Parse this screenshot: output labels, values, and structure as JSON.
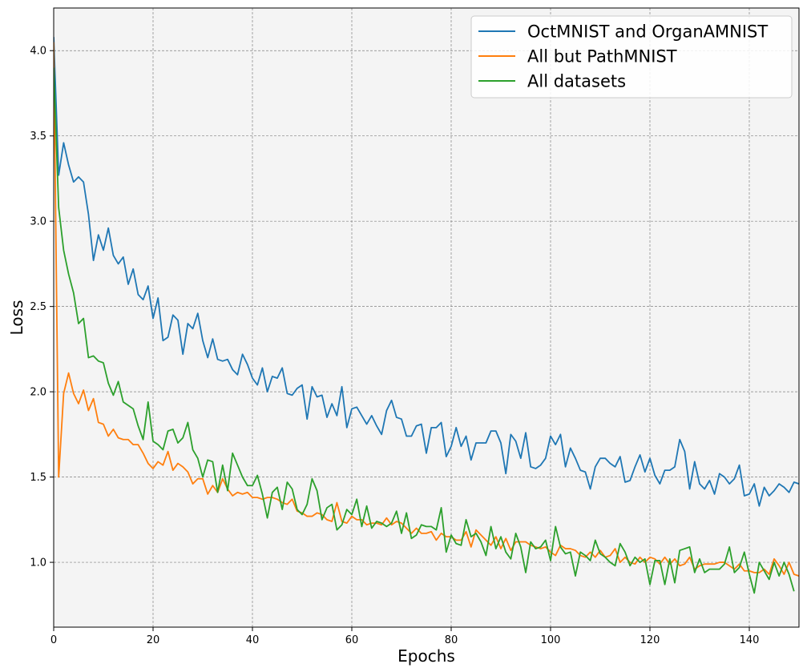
{
  "chart_data": {
    "type": "line",
    "xlabel": "Epochs",
    "ylabel": "Loss",
    "xlim": [
      0,
      150
    ],
    "ylim": [
      0.62,
      4.25
    ],
    "xticks": [
      0,
      20,
      40,
      60,
      80,
      100,
      120,
      140
    ],
    "yticks": [
      1.0,
      1.5,
      2.0,
      2.5,
      3.0,
      3.5,
      4.0
    ],
    "grid": true,
    "legend_position": "top-right",
    "background_color": "#f4f4f4",
    "series": [
      {
        "name": "OctMNIST and OrganAMNIST",
        "color": "#1f77b4",
        "values": [
          4.08,
          3.27,
          3.46,
          3.33,
          3.23,
          3.26,
          3.23,
          3.04,
          2.77,
          2.92,
          2.83,
          2.96,
          2.8,
          2.75,
          2.79,
          2.63,
          2.72,
          2.57,
          2.54,
          2.62,
          2.43,
          2.55,
          2.3,
          2.32,
          2.45,
          2.42,
          2.22,
          2.4,
          2.37,
          2.46,
          2.3,
          2.2,
          2.31,
          2.19,
          2.18,
          2.19,
          2.13,
          2.1,
          2.22,
          2.16,
          2.08,
          2.04,
          2.14,
          2.0,
          2.09,
          2.08,
          2.14,
          1.99,
          1.98,
          2.02,
          2.04,
          1.84,
          2.03,
          1.97,
          1.98,
          1.85,
          1.93,
          1.86,
          2.03,
          1.79,
          1.9,
          1.91,
          1.86,
          1.81,
          1.86,
          1.8,
          1.75,
          1.89,
          1.95,
          1.85,
          1.84,
          1.74,
          1.74,
          1.8,
          1.81,
          1.64,
          1.79,
          1.79,
          1.82,
          1.62,
          1.68,
          1.79,
          1.68,
          1.74,
          1.6,
          1.7,
          1.7,
          1.7,
          1.77,
          1.77,
          1.7,
          1.52,
          1.75,
          1.71,
          1.61,
          1.76,
          1.56,
          1.55,
          1.57,
          1.61,
          1.74,
          1.69,
          1.75,
          1.56,
          1.67,
          1.61,
          1.54,
          1.53,
          1.43,
          1.56,
          1.61,
          1.61,
          1.58,
          1.56,
          1.62,
          1.47,
          1.48,
          1.56,
          1.63,
          1.53,
          1.61,
          1.51,
          1.46,
          1.54,
          1.54,
          1.56,
          1.72,
          1.65,
          1.43,
          1.59,
          1.46,
          1.43,
          1.48,
          1.4,
          1.52,
          1.5,
          1.46,
          1.49,
          1.57,
          1.39,
          1.4,
          1.46,
          1.33,
          1.44,
          1.39,
          1.42,
          1.46,
          1.44,
          1.41,
          1.47,
          1.46
        ]
      },
      {
        "name": "All but PathMNIST",
        "color": "#ff7f0e",
        "values": [
          4.05,
          1.5,
          1.99,
          2.11,
          1.99,
          1.93,
          2.01,
          1.89,
          1.96,
          1.82,
          1.81,
          1.74,
          1.78,
          1.73,
          1.72,
          1.72,
          1.69,
          1.69,
          1.64,
          1.58,
          1.55,
          1.59,
          1.57,
          1.65,
          1.54,
          1.58,
          1.56,
          1.53,
          1.46,
          1.49,
          1.49,
          1.4,
          1.45,
          1.41,
          1.49,
          1.43,
          1.39,
          1.41,
          1.4,
          1.41,
          1.38,
          1.38,
          1.37,
          1.38,
          1.38,
          1.37,
          1.35,
          1.34,
          1.37,
          1.3,
          1.29,
          1.27,
          1.27,
          1.29,
          1.28,
          1.25,
          1.24,
          1.35,
          1.24,
          1.23,
          1.27,
          1.25,
          1.25,
          1.22,
          1.23,
          1.23,
          1.22,
          1.26,
          1.22,
          1.24,
          1.23,
          1.2,
          1.17,
          1.2,
          1.17,
          1.17,
          1.18,
          1.13,
          1.17,
          1.15,
          1.15,
          1.13,
          1.13,
          1.18,
          1.09,
          1.19,
          1.16,
          1.13,
          1.1,
          1.15,
          1.08,
          1.14,
          1.07,
          1.12,
          1.12,
          1.12,
          1.1,
          1.09,
          1.08,
          1.09,
          1.06,
          1.04,
          1.1,
          1.08,
          1.08,
          1.07,
          1.04,
          1.03,
          1.06,
          1.03,
          1.07,
          1.03,
          1.04,
          1.08,
          1.0,
          1.03,
          1.0,
          0.99,
          1.03,
          1.0,
          1.03,
          1.02,
          0.99,
          1.03,
          0.99,
          1.02,
          0.98,
          0.99,
          1.03,
          0.96,
          0.98,
          0.99,
          0.99,
          0.99,
          1.0,
          1.0,
          0.98,
          0.96,
          0.99,
          0.95,
          0.95,
          0.94,
          0.94,
          0.96,
          0.93,
          1.02,
          0.98,
          0.93,
          1.0,
          0.93,
          0.92
        ]
      },
      {
        "name": "All datasets",
        "color": "#2ca02c",
        "values": [
          3.9,
          3.08,
          2.83,
          2.69,
          2.58,
          2.4,
          2.43,
          2.2,
          2.21,
          2.18,
          2.17,
          2.05,
          1.98,
          2.06,
          1.94,
          1.92,
          1.9,
          1.8,
          1.72,
          1.94,
          1.71,
          1.69,
          1.66,
          1.77,
          1.78,
          1.7,
          1.73,
          1.82,
          1.66,
          1.61,
          1.5,
          1.6,
          1.59,
          1.41,
          1.57,
          1.42,
          1.64,
          1.57,
          1.5,
          1.45,
          1.45,
          1.51,
          1.4,
          1.26,
          1.41,
          1.44,
          1.31,
          1.47,
          1.43,
          1.31,
          1.28,
          1.34,
          1.49,
          1.42,
          1.25,
          1.32,
          1.34,
          1.19,
          1.22,
          1.31,
          1.28,
          1.37,
          1.21,
          1.33,
          1.2,
          1.24,
          1.23,
          1.21,
          1.23,
          1.3,
          1.17,
          1.29,
          1.14,
          1.16,
          1.22,
          1.21,
          1.21,
          1.19,
          1.32,
          1.06,
          1.16,
          1.11,
          1.1,
          1.25,
          1.15,
          1.17,
          1.12,
          1.04,
          1.21,
          1.08,
          1.15,
          1.06,
          1.02,
          1.17,
          1.09,
          0.94,
          1.12,
          1.08,
          1.09,
          1.13,
          1.01,
          1.21,
          1.09,
          1.05,
          1.06,
          0.92,
          1.06,
          1.04,
          1.01,
          1.13,
          1.05,
          1.03,
          1.0,
          0.98,
          1.11,
          1.06,
          0.98,
          1.03,
          1.0,
          1.02,
          0.87,
          1.01,
          1.01,
          0.87,
          1.02,
          0.88,
          1.07,
          1.08,
          1.09,
          0.94,
          1.02,
          0.94,
          0.96,
          0.96,
          0.96,
          0.99,
          1.09,
          0.94,
          0.97,
          1.06,
          0.93,
          0.82,
          1.0,
          0.95,
          0.9,
          1.0,
          0.92,
          1.0,
          0.93,
          0.83
        ]
      }
    ]
  }
}
